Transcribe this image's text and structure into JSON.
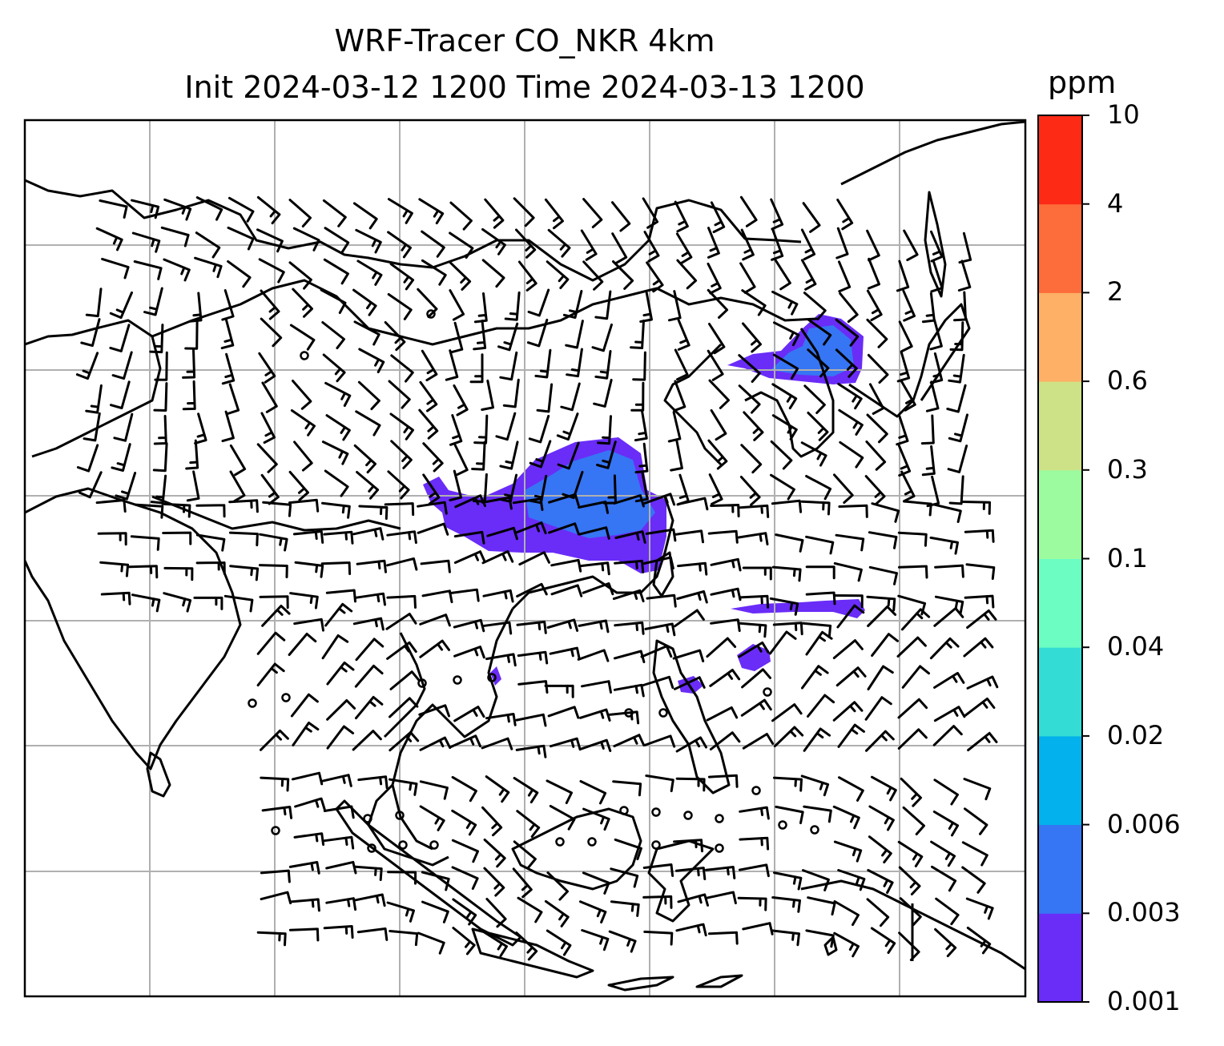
{
  "title_line1": "WRF-Tracer CO_NKR 4km",
  "title_line2": "Init 2024-03-12 1200 Time 2024-03-13 1200",
  "colorbar": {
    "unit": "ppm",
    "levels": [
      "0.001",
      "0.003",
      "0.006",
      "0.02",
      "0.04",
      "0.1",
      "0.3",
      "0.6",
      "2",
      "4",
      "10"
    ],
    "colors": [
      "#6a2cf7",
      "#3675f4",
      "#03b1ec",
      "#33ddd5",
      "#6bfdc2",
      "#9bfb9e",
      "#cde287",
      "#fdb066",
      "#fd6d3b",
      "#fd2a16"
    ]
  },
  "colors": {
    "coastline": "#000000",
    "gridline": "#b0b0b0",
    "wind_barb": "#000000"
  },
  "icons": {
    "wind_barb": "wind-barb-icon",
    "calm_wind": "calm-wind-circle-icon"
  }
}
